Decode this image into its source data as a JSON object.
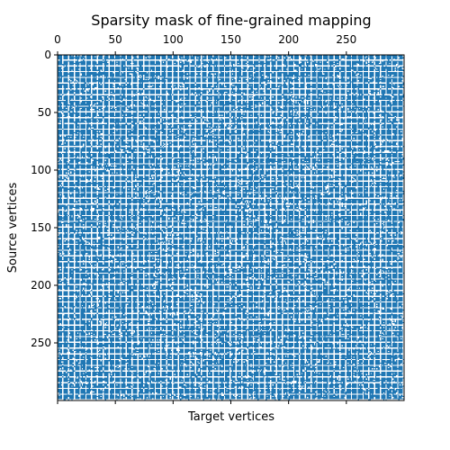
{
  "chart_data": {
    "type": "heatmap",
    "subtype": "sparsity-mask",
    "title": "Sparsity mask of fine-grained mapping",
    "xlabel": "Target vertices",
    "ylabel": "Source vertices",
    "rows": 300,
    "cols": 300,
    "xlim": [
      0,
      300
    ],
    "ylim": [
      300,
      0
    ],
    "x_ticks": [
      0,
      50,
      100,
      150,
      200,
      250
    ],
    "x_tick_labels": [
      "0",
      "50",
      "100",
      "150",
      "200",
      "250"
    ],
    "x_tick_labels_position": "top",
    "y_ticks": [
      0,
      50,
      100,
      150,
      200,
      250
    ],
    "y_tick_labels": [
      "0",
      "50",
      "100",
      "150",
      "200",
      "250"
    ],
    "marker_color": "#1f77b4",
    "background_color": "#ffffff",
    "approx_density": 0.85,
    "empty_row_spacing": 5,
    "empty_col_spacing": 5,
    "grid": false
  }
}
